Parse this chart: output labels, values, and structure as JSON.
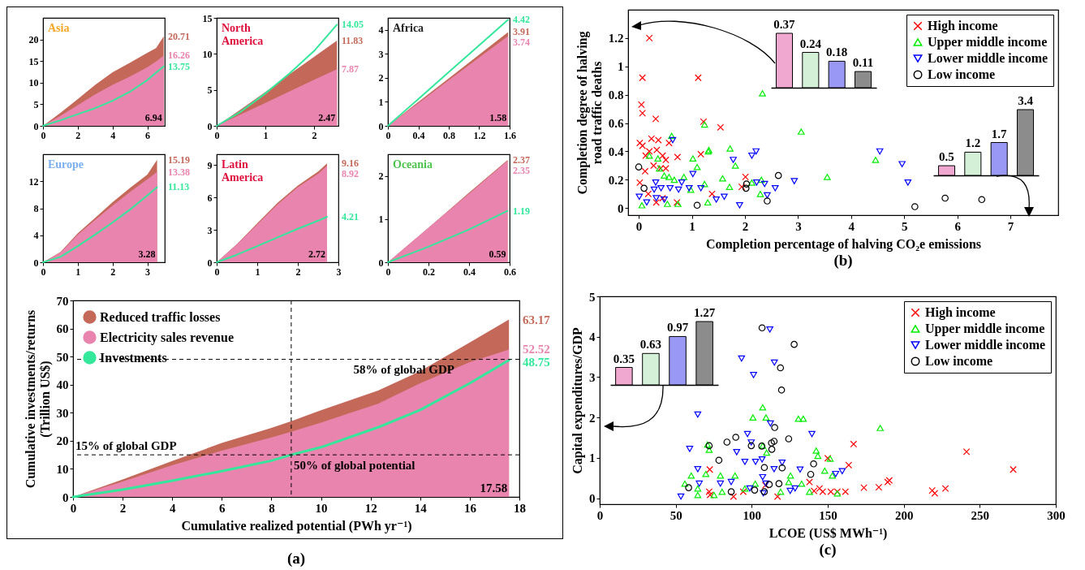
{
  "chart_data": [
    {
      "type": "area",
      "title": "Asia",
      "x": [
        0,
        1,
        2,
        3,
        4,
        5,
        6,
        6.5,
        6.94
      ],
      "xlim": [
        0,
        7
      ],
      "xticks": [
        0,
        2,
        4,
        6
      ],
      "ylim": [
        0,
        25
      ],
      "yticks": [
        0,
        5,
        10,
        15,
        20
      ],
      "series": [
        {
          "color": "#c4695a",
          "values": [
            0,
            3.0,
            6.2,
            9.5,
            12.4,
            14.6,
            16.9,
            18.0,
            20.71
          ],
          "value_labels": [
            null,
            null,
            null,
            null,
            null,
            null,
            null,
            null,
            "20.71"
          ]
        },
        {
          "color": "#e984ae",
          "values": [
            0,
            2.3,
            4.8,
            7.3,
            9.5,
            11.4,
            13.6,
            14.9,
            16.26
          ],
          "value_labels": [
            null,
            null,
            null,
            null,
            null,
            null,
            null,
            null,
            "16.26"
          ]
        },
        {
          "type": "line",
          "color": "#33e89b",
          "values": [
            0,
            1.3,
            2.7,
            4.1,
            5.8,
            7.9,
            10.6,
            12.3,
            13.75
          ],
          "value_labels": [
            null,
            null,
            null,
            null,
            null,
            null,
            null,
            null,
            "13.75"
          ]
        }
      ],
      "annotations": [
        {
          "text": "6.94",
          "x": 6.94,
          "y": 0
        }
      ]
    },
    {
      "type": "area",
      "title": "North America",
      "x": [
        0,
        0.5,
        1,
        1.5,
        2,
        2.47
      ],
      "xlim": [
        0,
        2.5
      ],
      "xticks": [
        0,
        1,
        2
      ],
      "ylim": [
        0,
        15
      ],
      "yticks": [
        0,
        5,
        10,
        15
      ],
      "series": [
        {
          "color": "#c4695a",
          "values": [
            0,
            2.3,
            4.7,
            7.2,
            9.6,
            11.83
          ],
          "value_labels": [
            null,
            null,
            null,
            null,
            null,
            "11.83"
          ]
        },
        {
          "color": "#e984ae",
          "values": [
            0,
            1.6,
            3.2,
            4.8,
            6.4,
            7.87
          ],
          "value_labels": [
            null,
            null,
            null,
            null,
            null,
            "7.87"
          ]
        },
        {
          "type": "line",
          "color": "#33e89b",
          "values": [
            0,
            2.0,
            4.5,
            7.3,
            10.4,
            14.05
          ],
          "value_labels": [
            null,
            null,
            null,
            null,
            null,
            "14.05"
          ]
        }
      ],
      "annotations": [
        {
          "text": "2.47",
          "x": 2.47,
          "y": 0
        }
      ]
    },
    {
      "type": "area",
      "title": "Africa",
      "x": [
        0,
        0.4,
        0.8,
        1.2,
        1.58
      ],
      "xlim": [
        0,
        1.6
      ],
      "xticks": [
        0,
        0.4,
        0.8,
        1.2,
        1.6
      ],
      "ylim": [
        0,
        4.5
      ],
      "yticks": [
        0,
        1,
        2,
        3,
        4
      ],
      "series": [
        {
          "color": "#c4695a",
          "values": [
            0,
            1.0,
            1.98,
            2.97,
            3.91
          ],
          "value_labels": [
            null,
            null,
            null,
            null,
            "3.91"
          ]
        },
        {
          "color": "#e984ae",
          "values": [
            0,
            0.95,
            1.9,
            2.85,
            3.74
          ],
          "value_labels": [
            null,
            null,
            null,
            null,
            "3.74"
          ]
        },
        {
          "type": "line",
          "color": "#33e89b",
          "values": [
            0,
            1.12,
            2.24,
            3.36,
            4.42
          ],
          "value_labels": [
            null,
            null,
            null,
            null,
            "4.42"
          ]
        }
      ],
      "annotations": [
        {
          "text": "1.58",
          "x": 1.58,
          "y": 0
        }
      ]
    },
    {
      "type": "area",
      "title": "Europe",
      "x": [
        0,
        0.5,
        1,
        1.5,
        2,
        2.5,
        3,
        3.28
      ],
      "xlim": [
        0,
        3.5
      ],
      "xticks": [
        0,
        1,
        2,
        3
      ],
      "ylim": [
        0,
        16
      ],
      "yticks": [
        0,
        4,
        8,
        12
      ],
      "series": [
        {
          "color": "#c4695a",
          "values": [
            0,
            1.5,
            4.3,
            6.6,
            8.9,
            11.0,
            13.0,
            15.19
          ],
          "value_labels": [
            null,
            null,
            null,
            null,
            null,
            null,
            null,
            "15.19"
          ]
        },
        {
          "color": "#e984ae",
          "values": [
            0,
            1.4,
            4.1,
            6.3,
            8.4,
            10.4,
            12.3,
            13.38
          ],
          "value_labels": [
            null,
            null,
            null,
            null,
            null,
            null,
            null,
            "13.38"
          ]
        },
        {
          "type": "line",
          "color": "#33e89b",
          "values": [
            0,
            0.8,
            2.4,
            4.1,
            5.9,
            7.8,
            9.9,
            11.13
          ],
          "value_labels": [
            null,
            null,
            null,
            null,
            null,
            null,
            null,
            "11.13"
          ]
        }
      ],
      "annotations": [
        {
          "text": "3.28",
          "x": 3.28,
          "y": 0
        }
      ]
    },
    {
      "type": "area",
      "title": "Latin America",
      "x": [
        0,
        0.5,
        1,
        1.5,
        2,
        2.5,
        2.72
      ],
      "xlim": [
        0,
        3
      ],
      "xticks": [
        0,
        1,
        2,
        3
      ],
      "ylim": [
        0,
        10
      ],
      "yticks": [
        0,
        3,
        6,
        9
      ],
      "series": [
        {
          "color": "#c4695a",
          "values": [
            0,
            1.7,
            3.6,
            5.5,
            7.1,
            8.4,
            9.16
          ],
          "value_labels": [
            null,
            null,
            null,
            null,
            null,
            null,
            "9.16"
          ]
        },
        {
          "color": "#e984ae",
          "values": [
            0,
            1.65,
            3.5,
            5.35,
            6.95,
            8.2,
            8.92
          ],
          "value_labels": [
            null,
            null,
            null,
            null,
            null,
            null,
            "8.92"
          ]
        },
        {
          "type": "line",
          "color": "#33e89b",
          "values": [
            0,
            0.7,
            1.5,
            2.3,
            3.1,
            3.85,
            4.21
          ],
          "value_labels": [
            null,
            null,
            null,
            null,
            null,
            null,
            "4.21"
          ]
        }
      ],
      "annotations": [
        {
          "text": "2.72",
          "x": 2.72,
          "y": 0
        }
      ]
    },
    {
      "type": "area",
      "title": "Oceania",
      "x": [
        0,
        0.2,
        0.4,
        0.59
      ],
      "xlim": [
        0,
        0.6
      ],
      "xticks": [
        0,
        0.2,
        0.4,
        0.6
      ],
      "ylim": [
        0,
        2.5
      ],
      "yticks": [
        0,
        1,
        2
      ],
      "series": [
        {
          "color": "#c4695a",
          "values": [
            0,
            0.8,
            1.61,
            2.37
          ],
          "value_labels": [
            null,
            null,
            null,
            "2.37"
          ]
        },
        {
          "color": "#e984ae",
          "values": [
            0,
            0.8,
            1.59,
            2.35
          ],
          "value_labels": [
            null,
            null,
            null,
            "2.35"
          ]
        },
        {
          "type": "line",
          "color": "#33e89b",
          "values": [
            0,
            0.36,
            0.76,
            1.19
          ],
          "value_labels": [
            null,
            null,
            null,
            "1.19"
          ]
        }
      ],
      "annotations": [
        {
          "text": "0.59",
          "x": 0.59,
          "y": 0
        }
      ]
    },
    {
      "type": "area",
      "xlabel": "Cumulative realized potential (PWh yr⁻¹)",
      "ylabel": "Cumulative investments/returns (Trillion US$)",
      "x": [
        0,
        2,
        4,
        6,
        8,
        8.8,
        10,
        12.3,
        14,
        16,
        17.58
      ],
      "xlim": [
        0,
        18
      ],
      "xticks": [
        0,
        2,
        4,
        6,
        8,
        10,
        12,
        14,
        16,
        18
      ],
      "ylim": [
        0,
        70
      ],
      "yticks": [
        0,
        10,
        20,
        30,
        40,
        50,
        60,
        70
      ],
      "legend": "top left",
      "series": [
        {
          "name": "Reduced traffic losses",
          "color": "#c4695a",
          "values": [
            0,
            6.2,
            12.8,
            19.2,
            24.6,
            27.0,
            30.9,
            37.9,
            44.8,
            55.0,
            63.17
          ],
          "value_labels": [
            null,
            null,
            null,
            null,
            null,
            null,
            null,
            null,
            null,
            null,
            "63.17"
          ]
        },
        {
          "name": "Electricity sales revenue",
          "color": "#e984ae",
          "values": [
            0,
            5.5,
            11.3,
            16.5,
            21.2,
            23.2,
            26.5,
            33.2,
            40.5,
            48.0,
            52.52
          ],
          "value_labels": [
            null,
            null,
            null,
            null,
            null,
            null,
            null,
            null,
            null,
            null,
            "52.52"
          ]
        },
        {
          "name": "Investments",
          "type": "line",
          "color": "#33e89b",
          "values": [
            0,
            2.6,
            5.8,
            9.2,
            12.9,
            15.0,
            17.7,
            24.8,
            31.0,
            40.5,
            48.75
          ],
          "value_labels": [
            null,
            null,
            null,
            null,
            null,
            null,
            null,
            null,
            null,
            null,
            "48.75"
          ]
        }
      ],
      "ref_lines": [
        {
          "axis": "y",
          "value": 49,
          "label": "58% of global GDP",
          "line_style": "dashed"
        },
        {
          "axis": "y",
          "value": 15,
          "label": "15% of global GDP",
          "line_style": "dashed"
        },
        {
          "axis": "x",
          "value": 8.8,
          "label": "50% of global potential",
          "line_style": "dashed"
        }
      ],
      "annotations": [
        {
          "text": "17.58",
          "x": 17.58,
          "y": 0
        },
        "(a)"
      ]
    },
    {
      "type": "scatter",
      "xlabel": "Completion percentage of halving CO₂e emissions",
      "ylabel": "Completion degree of halving road traffic deaths",
      "xlim": [
        -0.2,
        7.9
      ],
      "xticks": [
        0,
        1,
        2,
        3,
        4,
        5,
        6,
        7
      ],
      "ylim": [
        -0.05,
        1.4
      ],
      "yticks": [
        0,
        0.2,
        0.4,
        0.6,
        0.8,
        1,
        1.2
      ],
      "legend": "top right",
      "annotations": [
        "(b)"
      ],
      "series": [
        {
          "name": "High income",
          "color": "#ff0000",
          "marker": "cross",
          "x": [
            0.2,
            0.07,
            0.05,
            0.07,
            0.32,
            0.02,
            0.07,
            0.24,
            0.37,
            0.34,
            0.13,
            0.2,
            0.02,
            0.12,
            0.28,
            0.45,
            0.51,
            0.41,
            0.57,
            0.73,
            1.12,
            1.22,
            1.17,
            1.54,
            1.38,
            2.01,
            1.94,
            0.72,
            0.33,
            0.18,
            0.45,
            0.51
          ],
          "values": [
            1.2,
            0.92,
            0.73,
            0.67,
            0.63,
            0.46,
            0.44,
            0.49,
            0.48,
            0.41,
            0.37,
            0.4,
            0.18,
            0.26,
            0.3,
            0.37,
            0.34,
            0.28,
            0.46,
            0.36,
            0.92,
            0.61,
            0.38,
            0.57,
            0.1,
            0.22,
            0.15,
            0.04,
            0.04,
            0.1,
            0.07,
            0.28
          ]
        },
        {
          "name": "Upper middle income",
          "color": "#00ee00",
          "marker": "triangle",
          "x": [
            0.06,
            0.2,
            0.36,
            0.62,
            0.39,
            0.48,
            0.57,
            0.67,
            0.85,
            1.02,
            1.1,
            0.98,
            1.24,
            1.32,
            1.31,
            1.24,
            1.3,
            1.58,
            1.72,
            1.82,
            1.71,
            2.13,
            2.31,
            2.29,
            2.33,
            3.06,
            3.55,
            4.46,
            0.54,
            0.74
          ],
          "values": [
            0.02,
            0.37,
            0.35,
            0.51,
            0.28,
            0.23,
            0.22,
            0.2,
            0.22,
            0.35,
            0.29,
            0.13,
            0.59,
            0.41,
            0.4,
            0.17,
            0.04,
            0.21,
            0.42,
            0.3,
            0.15,
            0.18,
            0.2,
            0.1,
            0.81,
            0.54,
            0.22,
            0.34,
            0.03,
            0.03
          ]
        },
        {
          "name": "Lower middle income",
          "color": "#0000ff",
          "marker": "triangle-down",
          "x": [
            0.64,
            0.01,
            0.15,
            0.33,
            0.32,
            0.42,
            0.48,
            0.59,
            0.75,
            0.81,
            0.95,
            1.02,
            1.17,
            1.46,
            1.61,
            1.78,
            1.9,
            2.13,
            2.21,
            2.22,
            2.37,
            2.42,
            2.57,
            2.93,
            4.54,
            4.96,
            5.07,
            0.29
          ],
          "values": [
            0.48,
            0.08,
            0.04,
            0.07,
            0.18,
            0.14,
            0.06,
            0.14,
            0.13,
            0.18,
            0.14,
            0.24,
            0.14,
            0.06,
            0.08,
            0.34,
            0.02,
            0.37,
            0.4,
            0.18,
            0.17,
            0.09,
            0.14,
            0.19,
            0.4,
            0.31,
            0.18,
            0.13
          ]
        },
        {
          "name": "Low income",
          "color": "#000000",
          "marker": "circle",
          "x": [
            0,
            0.1,
            1.1,
            2.03,
            2.02,
            2.42,
            2.63,
            5.2,
            5.77,
            6.46
          ],
          "values": [
            0.29,
            0.14,
            0.02,
            0.17,
            0.14,
            0.05,
            0.23,
            0.01,
            0.07,
            0.06
          ]
        }
      ]
    },
    {
      "type": "bar",
      "categories": [
        null,
        null,
        null,
        null
      ],
      "values": [
        0.37,
        0.24,
        0.18,
        0.11
      ],
      "colors": [
        "#f0a8d0",
        "#d4f0d6",
        "#9999f5",
        "#8c8c8c"
      ],
      "data_labels": true
    },
    {
      "type": "bar",
      "categories": [
        null,
        null,
        null,
        null
      ],
      "values": [
        0.5,
        1.2,
        1.7,
        3.4
      ],
      "colors": [
        "#f0a8d0",
        "#d4f0d6",
        "#9999f5",
        "#8c8c8c"
      ],
      "data_labels": true
    },
    {
      "type": "scatter",
      "xlabel": "LCOE (US$ MWh⁻¹)",
      "ylabel": "Capital expenditures/GDP",
      "xlim": [
        0,
        300
      ],
      "xticks": [
        0,
        50,
        100,
        150,
        200,
        250,
        300
      ],
      "ylim": [
        -0.15,
        5
      ],
      "yticks": [
        0,
        1,
        2,
        3,
        4,
        5
      ],
      "legend": "top right",
      "annotations": [
        "(c)"
      ],
      "series": [
        {
          "name": "High income",
          "color": "#ff0000",
          "marker": "cross",
          "x": [
            72.4,
            72.6,
            88,
            94.4,
            117,
            141,
            144.6,
            146.7,
            150,
            152,
            156.3,
            161.6,
            163.8,
            167,
            173.8,
            183.6,
            189.4,
            190.5,
            218.7,
            220.4,
            227.4,
            241.3,
            272,
            72,
            109,
            138
          ],
          "values": [
            0.71,
            0.08,
            0.04,
            0.16,
            0.04,
            0.18,
            0.24,
            0.16,
            0.99,
            0.16,
            0.16,
            0.16,
            0.82,
            1.34,
            0.26,
            0.27,
            0.4,
            0.44,
            0.19,
            0.12,
            0.24,
            1.15,
            0.71,
            0.16,
            0.32,
            0.4
          ]
        },
        {
          "name": "Upper middle income",
          "color": "#00ee00",
          "marker": "triangle",
          "x": [
            56,
            60.2,
            64.5,
            69.8,
            70.9,
            72,
            79.4,
            80.5,
            89,
            95.5,
            100.8,
            107.2,
            109.4,
            107.2,
            109.8,
            102.3,
            119,
            125.5,
            130.7,
            133.9,
            132.8,
            142.4,
            143.5,
            148,
            151.6,
            153,
            156.3,
            184.5,
            75.2,
            64.5,
            138,
            124.3
          ],
          "values": [
            0.36,
            0.56,
            0.24,
            0.6,
            1.33,
            1.2,
            0.56,
            0.16,
            0.56,
            0.24,
            2.0,
            2.25,
            2.0,
            1.3,
            1.13,
            0.36,
            0.16,
            0.56,
            1.97,
            1.97,
            0.36,
            1.18,
            1.05,
            0.68,
            0.98,
            0.56,
            0.12,
            1.74,
            0.08,
            0.08,
            0.16,
            0.4
          ]
        },
        {
          "name": "Lower middle income",
          "color": "#0000ff",
          "marker": "triangle-down",
          "x": [
            53.4,
            59.2,
            64.5,
            64.5,
            65.5,
            79.4,
            86.5,
            90.1,
            93.3,
            95.5,
            97.2,
            98.7,
            101.2,
            99.7,
            102.5,
            106.8,
            107.2,
            107.6,
            111.9,
            112.3,
            114.9,
            114.7,
            120,
            125.3,
            128.5,
            131.8,
            139.6,
            155.2,
            159.5,
            109.3
          ],
          "values": [
            0.04,
            1.22,
            2.07,
            0.72,
            0.36,
            0.36,
            0.4,
            1.14,
            3.46,
            0.9,
            1.59,
            0.24,
            3.05,
            1.38,
            0.9,
            0.96,
            0.52,
            0.12,
            4.18,
            1.85,
            3.36,
            0.72,
            0.88,
            0.18,
            0.24,
            0.71,
            1.59,
            0.6,
            0.67,
            0.36
          ]
        },
        {
          "name": "Low income",
          "color": "#000000",
          "marker": "circle",
          "x": [
            58.5,
            72,
            78.4,
            83.7,
            86.5,
            89.5,
            99.7,
            101.9,
            106.6,
            106.8,
            108.3,
            108.3,
            111.5,
            113,
            114.7,
            113.2,
            115.1,
            117.9,
            118.9,
            119.6,
            120,
            124.3,
            127.9,
            138.8,
            140.7
          ],
          "values": [
            0.26,
            1.3,
            0.94,
            1.39,
            0.16,
            1.51,
            1.3,
            0.2,
            1.29,
            4.22,
            0.16,
            0.76,
            0.34,
            1.37,
            1.41,
            1.21,
            1.75,
            0.36,
            3.23,
            2.68,
            0.75,
            1.47,
            3.81,
            0.59,
            0.85
          ]
        }
      ]
    },
    {
      "type": "bar",
      "categories": [
        null,
        null,
        null,
        null
      ],
      "values": [
        0.35,
        0.63,
        0.97,
        1.27
      ],
      "colors": [
        "#f0a8d0",
        "#d4f0d6",
        "#9999f5",
        "#8c8c8c"
      ],
      "data_labels": true
    }
  ]
}
